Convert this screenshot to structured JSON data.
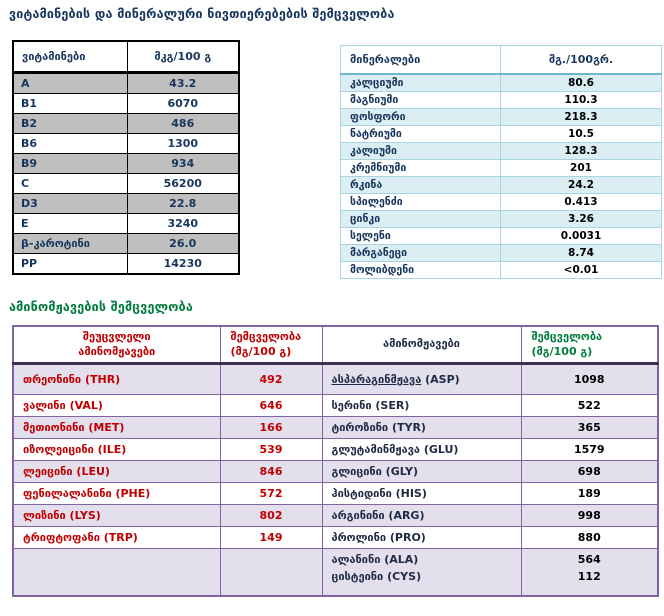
{
  "page": {
    "title_vitamins_minerals": "ვიტამინების და მინერალური ნივთიერებების შემცველობა",
    "title_amino_acids": "ამინომჟავების შემცველობა"
  },
  "colors": {
    "navy_text": "#17365D",
    "green_text": "#007A3D",
    "red_text": "#C00000",
    "vitamin_stripe": "#BFBFBF",
    "mineral_stripe": "#DAEEF3",
    "mineral_border": "#A9D5E2",
    "amino_stripe": "#E4DFEC",
    "amino_border": "#8064A2",
    "black_border": "#000000"
  },
  "vitamins": {
    "headers": {
      "name": "ვიტამინები",
      "value": "მკგ/100 გ"
    },
    "rows": [
      [
        "A",
        "43.2"
      ],
      [
        "B1",
        "6070"
      ],
      [
        "B2",
        "486"
      ],
      [
        "B6",
        "1300"
      ],
      [
        "B9",
        "934"
      ],
      [
        "C",
        "56200"
      ],
      [
        "D3",
        "22.8"
      ],
      [
        "E",
        "3240"
      ],
      [
        "β-კაროტინი",
        "26.0"
      ],
      [
        "PP",
        "14230"
      ]
    ]
  },
  "minerals": {
    "headers": {
      "name": "მინერალები",
      "value": "მგ./100გრ."
    },
    "rows": [
      [
        "კალციუმი",
        "80.6"
      ],
      [
        "მაგნიუმი",
        "110.3"
      ],
      [
        "ფოსფორი",
        "218.3"
      ],
      [
        "ნატრიუმი",
        "10.5"
      ],
      [
        "კალიუმი",
        "128.3"
      ],
      [
        "კრემნიუმი",
        "201"
      ],
      [
        "რკინა",
        "24.2"
      ],
      [
        "სპილენძი",
        "0.413"
      ],
      [
        "ცინკი",
        "3.26"
      ],
      [
        "სელენი",
        "0.0031"
      ],
      [
        "მარგანეცი",
        "8.74"
      ],
      [
        "მოლიბდენი",
        "<0.01"
      ]
    ]
  },
  "amino_acids": {
    "headers": {
      "essential_name": "შეუცვლელი\nამინომჟავები",
      "essential_value": "შემცველობა\n(მგ/100 გ)",
      "other_name": "ამინომჟავები",
      "other_value": "შემცველობა\n(მგ/100 გ)"
    },
    "rows": [
      {
        "en": "თრეონინი  (THR)",
        "ev": "492",
        "on": {
          "u": "ასპარაგინმჟავა",
          "rest": " (ASP)"
        },
        "ov": "1098"
      },
      {
        "en": "ვალინი (VAL)",
        "ev": "646",
        "on": "სერინი (SER)",
        "ov": "522"
      },
      {
        "en": "მეთიონინი  (MET)",
        "ev": "166",
        "on": "ტიროზინი (TYR)",
        "ov": "365"
      },
      {
        "en": "იზოლეიცინი  (ILE)",
        "ev": "539",
        "on": "გლუტამინმჟავა (GLU)",
        "ov": "1579"
      },
      {
        "en": "ლეიცინი  (LEU)",
        "ev": "846",
        "on": "გლიცინი (GLY)",
        "ov": "698"
      },
      {
        "en": "ფენილალანინი  (PHE)",
        "ev": "572",
        "on": "ჰისტიდინი (HIS)",
        "ov": "189"
      },
      {
        "en": "ლიზინი  (LYS)",
        "ev": "802",
        "on": "არგინინი (ARG)",
        "ov": "998"
      },
      {
        "en": "ტრიფტოფანი  (TRP)",
        "ev": "149",
        "on": "პროლინი (PRO)",
        "ov": "880"
      },
      {
        "en": "",
        "ev": "",
        "on": "ალანინი (ALA)\nცისტეინი (CYS)",
        "ov": "564\n112"
      }
    ]
  }
}
